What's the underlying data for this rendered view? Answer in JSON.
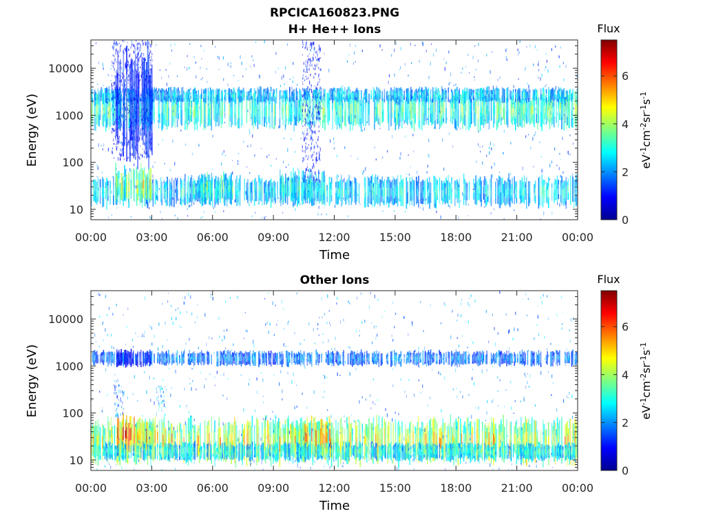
{
  "figure": {
    "title_line1": "RPCICA160823.PNG"
  },
  "chart_data": [
    {
      "type": "heatmap",
      "title": "H+ He++ Ions",
      "xlabel": "Time",
      "ylabel": "Energy (eV)",
      "x_ticks": [
        "00:00",
        "03:00",
        "06:00",
        "09:00",
        "12:00",
        "15:00",
        "18:00",
        "21:00",
        "00:00"
      ],
      "x_range_hours": [
        0,
        24
      ],
      "y_ticks": [
        {
          "value": 10,
          "label": "10"
        },
        {
          "value": 100,
          "label": "100"
        },
        {
          "value": 1000,
          "label": "1000"
        },
        {
          "value": 10000,
          "label": "10000"
        }
      ],
      "y_scale": "log",
      "y_range": [
        6,
        40000
      ],
      "colorbar": {
        "title": "Flux",
        "label": "eV-1cm-2sr-1s-1",
        "range": [
          0,
          7.5
        ],
        "ticks": [
          "0",
          "2",
          "4",
          "6"
        ],
        "colormap": "jet"
      },
      "bands": [
        {
          "t": [
            0.0,
            24.0
          ],
          "e_center": 1300,
          "decades": 0.25,
          "v": 3.4
        },
        {
          "t": [
            0.0,
            24.0
          ],
          "e_center": 2700,
          "decades": 0.1,
          "v": 2.6
        },
        {
          "t": [
            1.2,
            3.0
          ],
          "e_center": 1700,
          "decades": 0.75,
          "v": 1.4
        },
        {
          "t": [
            0.0,
            24.0
          ],
          "e_center": 24,
          "decades": 0.2,
          "v": 2.8
        },
        {
          "t": [
            1.2,
            3.0
          ],
          "e_center": 32,
          "decades": 0.25,
          "v": 4.2
        },
        {
          "t": [
            5.0,
            7.0
          ],
          "e_center": 28,
          "decades": 0.2,
          "v": 3.4
        },
        {
          "t": [
            9.3,
            11.5
          ],
          "e_center": 30,
          "decades": 0.22,
          "v": 3.1
        }
      ],
      "scatter_regions": [
        {
          "t": [
            1.0,
            3.0
          ],
          "e": [
            120,
            40000
          ],
          "v": 1.0
        },
        {
          "t": [
            10.4,
            11.3
          ],
          "e": [
            40,
            40000
          ],
          "v": 1.0
        },
        {
          "t": [
            0.0,
            24.0
          ],
          "e": [
            6,
            40000
          ],
          "v": 1.8
        }
      ]
    },
    {
      "type": "heatmap",
      "title": "Other Ions",
      "xlabel": "Time",
      "ylabel": "Energy (eV)",
      "x_ticks": [
        "00:00",
        "03:00",
        "06:00",
        "09:00",
        "12:00",
        "15:00",
        "18:00",
        "21:00",
        "00:00"
      ],
      "x_range_hours": [
        0,
        24
      ],
      "y_ticks": [
        {
          "value": 10,
          "label": "10"
        },
        {
          "value": 100,
          "label": "100"
        },
        {
          "value": 1000,
          "label": "1000"
        },
        {
          "value": 10000,
          "label": "10000"
        }
      ],
      "y_scale": "log",
      "y_range": [
        6,
        40000
      ],
      "colorbar": {
        "title": "Flux",
        "label": "eV-1cm-2sr-1s-1",
        "range": [
          0,
          7.5
        ],
        "ticks": [
          "0",
          "2",
          "4",
          "6"
        ],
        "colormap": "jet"
      },
      "bands": [
        {
          "t": [
            0.0,
            24.0
          ],
          "e_center": 1450,
          "decades": 0.1,
          "v": 2.0
        },
        {
          "t": [
            1.2,
            3.0
          ],
          "e_center": 1450,
          "decades": 0.12,
          "v": 1.2
        },
        {
          "t": [
            0.0,
            24.0
          ],
          "e_center": 25,
          "decades": 0.3,
          "v": 4.6
        },
        {
          "t": [
            1.3,
            3.2
          ],
          "e_center": 33,
          "decades": 0.25,
          "v": 5.6
        },
        {
          "t": [
            9.5,
            11.8
          ],
          "e_center": 30,
          "decades": 0.25,
          "v": 5.2
        },
        {
          "t": [
            0.0,
            24.0
          ],
          "e_center": 15,
          "decades": 0.12,
          "v": 3.0
        }
      ],
      "scatter_regions": [
        {
          "t": [
            1.1,
            1.6
          ],
          "e": [
            90,
            500
          ],
          "v": 1.8
        },
        {
          "t": [
            3.2,
            3.7
          ],
          "e": [
            100,
            400
          ],
          "v": 2.2
        },
        {
          "t": [
            0.0,
            24.0
          ],
          "e": [
            6,
            40000
          ],
          "v": 2.0
        }
      ]
    }
  ]
}
